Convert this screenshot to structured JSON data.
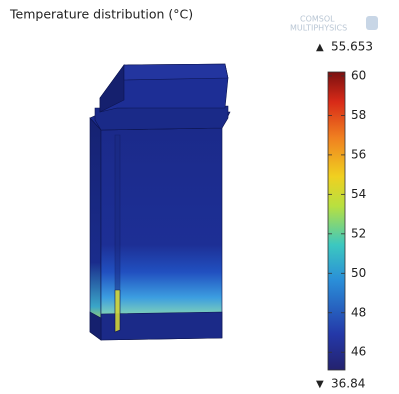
{
  "title": "Temperature distribution (°C)",
  "logo": {
    "line1": "COMSOL",
    "line2": "MULTIPHYSICS"
  },
  "colorbar": {
    "max_label": "55.653",
    "min_label": "36.84",
    "limits": [
      45.1,
      60.2
    ],
    "ticks": [
      46,
      48,
      50,
      52,
      54,
      56,
      58,
      60
    ]
  }
}
